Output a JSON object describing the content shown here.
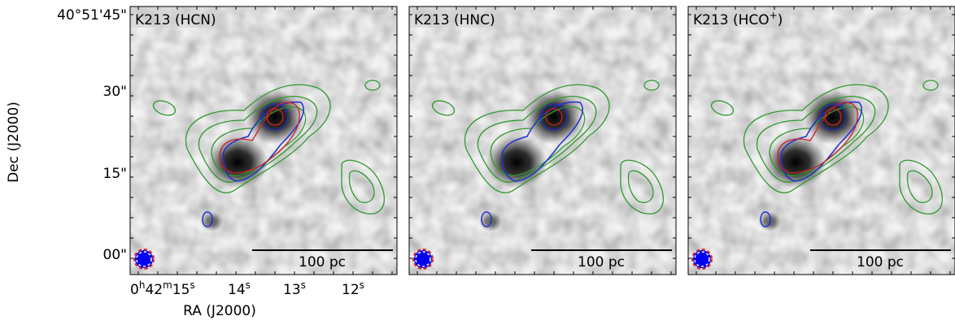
{
  "axes": {
    "y_label": "Dec (J2000)",
    "x_label": "RA (J2000)",
    "y_ticks": [
      "40°51'45\"",
      "30\"",
      "15\"",
      "00\""
    ],
    "x_ticks": [
      [
        "0",
        "h",
        "42",
        "m",
        "15",
        "s"
      ],
      [
        "14",
        "s"
      ],
      [
        "13",
        "s"
      ],
      [
        "12",
        "s"
      ]
    ]
  },
  "panels": [
    {
      "title": [
        "K213 (HCN)"
      ],
      "scale_bar": "100 pc"
    },
    {
      "title": [
        "K213 (HNC)"
      ],
      "scale_bar": "100 pc"
    },
    {
      "title": [
        "K213 (HCO",
        "+",
        ")"
      ],
      "scale_bar": "100 pc"
    }
  ]
}
